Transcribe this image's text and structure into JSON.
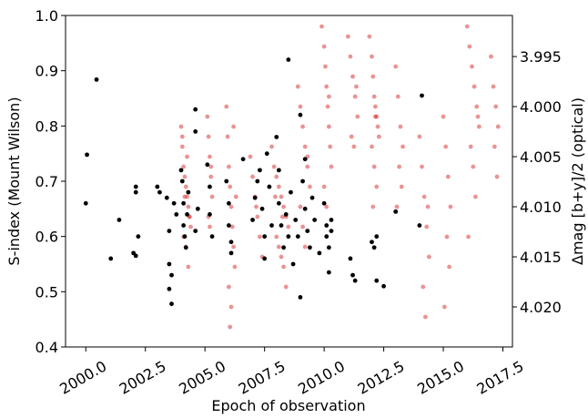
{
  "chart_data": {
    "type": "scatter",
    "xlabel": "Epoch of observation",
    "ylabel": "S-index (Mount Wilson)",
    "y2label": "Δmag [b+y]/2 (optical)",
    "y2label_color": "#d62728",
    "xlim": [
      1999.15,
      2017.9
    ],
    "ylim": [
      0.4,
      1.0
    ],
    "y2lim": [
      4.024,
      3.9909
    ],
    "xticks": [
      {
        "value": 2000,
        "label": "2000.0"
      },
      {
        "value": 2002.5,
        "label": "2002.5"
      },
      {
        "value": 2005,
        "label": "2005.0"
      },
      {
        "value": 2007.5,
        "label": "2007.5"
      },
      {
        "value": 2010,
        "label": "2010.0"
      },
      {
        "value": 2012.5,
        "label": "2012.5"
      },
      {
        "value": 2015,
        "label": "2015.0"
      },
      {
        "value": 2017.5,
        "label": "2017.5"
      }
    ],
    "yticks": [
      0.4,
      0.5,
      0.6,
      0.7,
      0.8,
      0.9,
      {
        "value": 1,
        "label": "1.0"
      }
    ],
    "y2ticks": [
      3.995,
      {
        "value": 4,
        "label": "4.000"
      },
      4.005,
      {
        "value": 4.01,
        "label": "4.010"
      },
      4.015,
      {
        "value": 4.02,
        "label": "4.020"
      }
    ],
    "series": [
      {
        "color": "#d62728",
        "opacity": 0.5,
        "axis": "y2",
        "x": [
          2004.0,
          2004.05,
          2004.1,
          2004.15,
          2004.2,
          2004.25,
          2004.3,
          2004.35,
          2004.4,
          2004.1,
          2004.2,
          2004.3,
          2004.05,
          2004.15,
          2004.25,
          2004.35,
          2005.1,
          2005.15,
          2005.2,
          2005.25,
          2005.3,
          2005.15,
          2005.2,
          2005.25,
          2005.9,
          2005.95,
          2006.0,
          2006.05,
          2006.1,
          2006.15,
          2006.2,
          2006.25,
          2006.0,
          2006.1,
          2006.05,
          2006.2,
          2006.3,
          2006.9,
          2007.0,
          2007.1,
          2007.2,
          2007.3,
          2007.4,
          2007.15,
          2007.8,
          2007.9,
          2008.0,
          2008.1,
          2008.2,
          2008.3,
          2008.4,
          2008.5,
          2008.0,
          2008.1,
          2008.2,
          2008.3,
          2008.4,
          2007.95,
          2008.25,
          2008.9,
          2009.0,
          2009.1,
          2009.2,
          2009.3,
          2009.4,
          2009.0,
          2009.1,
          2009.2,
          2009.3,
          2009.9,
          2010.0,
          2010.05,
          2010.1,
          2010.15,
          2010.2,
          2010.25,
          2010.3,
          2010.0,
          2010.1,
          2010.2,
          2011.0,
          2011.1,
          2011.2,
          2011.3,
          2011.4,
          2011.15,
          2011.25,
          2011.35,
          2011.9,
          2012.0,
          2012.05,
          2012.1,
          2012.15,
          2012.2,
          2012.25,
          2012.3,
          2012.0,
          2012.1,
          2012.2,
          2012.05,
          2012.15,
          2013.0,
          2013.1,
          2013.2,
          2013.3,
          2013.15,
          2013.25,
          2013.05,
          2014.0,
          2014.1,
          2014.2,
          2014.3,
          2014.4,
          2014.15,
          2014.25,
          2014.35,
          2015.0,
          2015.1,
          2015.2,
          2015.3,
          2015.15,
          2015.25,
          2015.05,
          2016.0,
          2016.1,
          2016.2,
          2016.3,
          2016.4,
          2016.5,
          2016.15,
          2016.25,
          2016.35,
          2016.05,
          2016.45,
          2017.0,
          2017.1,
          2017.2,
          2017.3,
          2017.15,
          2017.25
        ],
        "values": [
          4.002,
          4.004,
          4.006,
          4.007,
          4.008,
          4.009,
          4.01,
          4.011,
          4.012,
          4.013,
          4.014,
          4.016,
          4.003,
          4.009,
          4.005,
          4.011,
          4.001,
          4.003,
          4.005,
          4.007,
          4.009,
          4.011,
          4.012,
          4.006,
          4.0,
          4.003,
          4.006,
          4.008,
          4.01,
          4.012,
          4.014,
          4.016,
          4.018,
          4.02,
          4.022,
          4.002,
          4.009,
          4.005,
          4.007,
          4.009,
          4.011,
          4.013,
          4.015,
          4.01,
          4.004,
          4.006,
          4.007,
          4.008,
          4.009,
          4.01,
          4.011,
          4.012,
          4.013,
          4.014,
          4.015,
          4.016,
          4.018,
          4.009,
          4.011,
          3.998,
          4.0,
          4.002,
          4.004,
          4.006,
          4.008,
          4.01,
          4.012,
          4.014,
          4.005,
          3.992,
          3.994,
          3.996,
          3.998,
          4.0,
          4.002,
          4.004,
          4.006,
          4.008,
          4.01,
          3.999,
          3.993,
          3.995,
          3.997,
          3.999,
          4.001,
          4.003,
          4.004,
          3.998,
          3.993,
          3.995,
          3.997,
          3.999,
          4.0,
          4.001,
          4.002,
          4.003,
          4.004,
          4.006,
          4.008,
          4.01,
          4.001,
          3.996,
          3.999,
          4.002,
          4.004,
          4.006,
          4.008,
          4.01,
          4.003,
          4.006,
          4.009,
          4.012,
          4.015,
          4.018,
          4.021,
          4.01,
          4.001,
          4.004,
          4.007,
          4.01,
          4.013,
          4.016,
          4.02,
          3.992,
          3.994,
          3.996,
          3.998,
          4.0,
          4.002,
          4.004,
          4.006,
          4.009,
          4.013,
          4.001,
          3.995,
          3.998,
          4.0,
          4.002,
          4.004,
          4.007
        ]
      },
      {
        "color": "#000000",
        "opacity": 1,
        "axis": "y",
        "x": [
          2000.0,
          2000.05,
          2000.45,
          2001.05,
          2001.4,
          2002.0,
          2002.1,
          2002.1,
          2002.2,
          2002.1,
          2003.0,
          2003.1,
          2003.4,
          2003.5,
          2003.5,
          2003.5,
          2003.6,
          2003.6,
          2003.7,
          2003.8,
          2004.0,
          2004.05,
          2004.1,
          2004.1,
          2004.15,
          2004.2,
          2004.25,
          2004.3,
          2004.6,
          2004.6,
          2004.6,
          2004.7,
          2005.1,
          2005.2,
          2005.2,
          2005.3,
          2005.9,
          2006.0,
          2006.0,
          2006.1,
          2006.1,
          2006.6,
          2007.0,
          2007.1,
          2007.2,
          2007.3,
          2007.4,
          2007.5,
          2007.5,
          2007.6,
          2007.7,
          2007.8,
          2008.0,
          2008.1,
          2008.1,
          2008.2,
          2008.3,
          2008.4,
          2008.5,
          2008.5,
          2008.6,
          2008.7,
          2008.8,
          2008.9,
          2009.0,
          2009.1,
          2009.2,
          2009.2,
          2009.3,
          2009.4,
          2009.5,
          2009.6,
          2009.0,
          2009.8,
          2010.0,
          2010.1,
          2010.1,
          2010.2,
          2010.2,
          2010.3,
          2010.3,
          2011.1,
          2011.2,
          2011.3,
          2012.0,
          2012.1,
          2012.2,
          2012.5,
          2012.2,
          2013.0,
          2014.0,
          2014.1
        ],
        "values": [
          0.66,
          0.748,
          0.884,
          0.56,
          0.63,
          0.57,
          0.69,
          0.68,
          0.6,
          0.565,
          0.69,
          0.68,
          0.67,
          0.61,
          0.55,
          0.505,
          0.478,
          0.53,
          0.66,
          0.64,
          0.72,
          0.7,
          0.66,
          0.62,
          0.6,
          0.58,
          0.64,
          0.68,
          0.79,
          0.83,
          0.61,
          0.65,
          0.73,
          0.69,
          0.64,
          0.6,
          0.7,
          0.66,
          0.62,
          0.57,
          0.59,
          0.74,
          0.63,
          0.67,
          0.7,
          0.72,
          0.65,
          0.6,
          0.56,
          0.75,
          0.69,
          0.62,
          0.78,
          0.72,
          0.66,
          0.62,
          0.58,
          0.64,
          0.92,
          0.6,
          0.68,
          0.55,
          0.63,
          0.6,
          0.82,
          0.7,
          0.74,
          0.65,
          0.61,
          0.58,
          0.67,
          0.63,
          0.49,
          0.57,
          0.66,
          0.62,
          0.6,
          0.58,
          0.535,
          0.63,
          0.61,
          0.56,
          0.53,
          0.52,
          0.59,
          0.58,
          0.52,
          0.51,
          0.6,
          0.645,
          0.62,
          0.855
        ]
      }
    ]
  }
}
